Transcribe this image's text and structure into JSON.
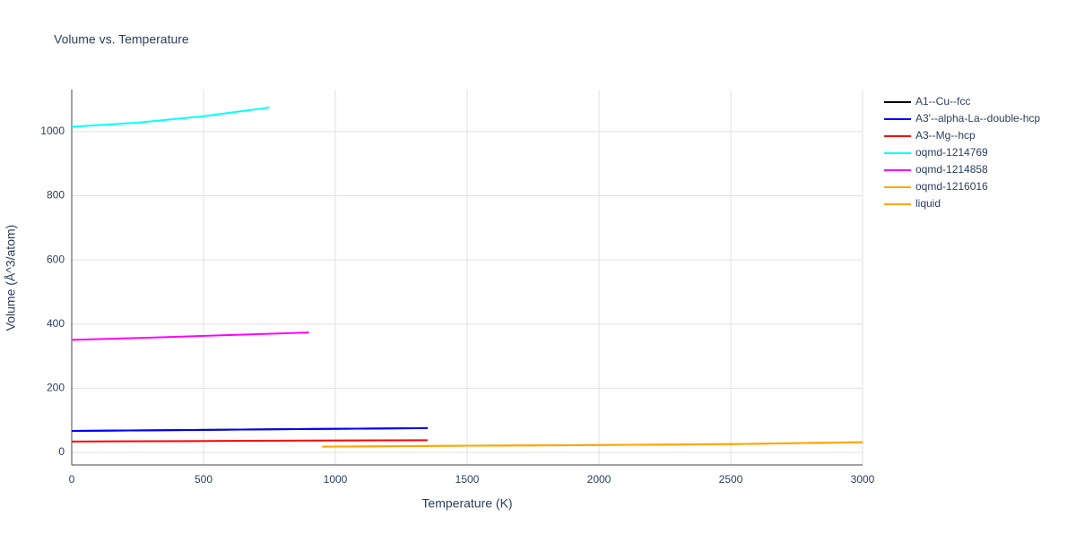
{
  "chart_data": {
    "type": "line",
    "title": "Volume vs. Temperature",
    "x_label": "Temperature (K)",
    "y_label": "Volume (Å^3/atom)",
    "xlim": [
      0,
      3000
    ],
    "ylim": [
      -39,
      1131
    ],
    "xticks": [
      0,
      500,
      1000,
      1500,
      2000,
      2500,
      3000
    ],
    "yticks": [
      0,
      200,
      400,
      600,
      800,
      1000
    ],
    "grid": true,
    "legend": "right",
    "series": [
      {
        "name": "A1--Cu--fcc",
        "color": "#000000",
        "x": [
          0,
          450,
          900,
          1350
        ],
        "values": [
          67,
          70,
          73,
          76
        ]
      },
      {
        "name": "A3'--alpha-La--double-hcp",
        "color": "#0000ff",
        "x": [
          0,
          450,
          900,
          1350
        ],
        "values": [
          67,
          70,
          73,
          76
        ]
      },
      {
        "name": "A3--Mg--hcp",
        "color": "#ff0000",
        "x": [
          0,
          450,
          900,
          1350
        ],
        "values": [
          34,
          35.5,
          37,
          38
        ]
      },
      {
        "name": "oqmd-1214769",
        "color": "#00ffff",
        "x": [
          0,
          250,
          500,
          750
        ],
        "values": [
          1015,
          1028,
          1048,
          1075
        ]
      },
      {
        "name": "oqmd-1214858",
        "color": "#ff00ff",
        "x": [
          0,
          300,
          600,
          900
        ],
        "values": [
          351,
          358,
          366,
          374
        ]
      },
      {
        "name": "oqmd-1216016",
        "color": "#ffa500",
        "x": [
          950,
          1500,
          2000,
          2500,
          3000
        ],
        "values": [
          18,
          21,
          23,
          26,
          32
        ]
      },
      {
        "name": "liquid",
        "color": "#ffa500",
        "x": [
          950,
          1500,
          2000,
          2500,
          3000
        ],
        "values": [
          18,
          21,
          23,
          26,
          32
        ]
      }
    ]
  }
}
